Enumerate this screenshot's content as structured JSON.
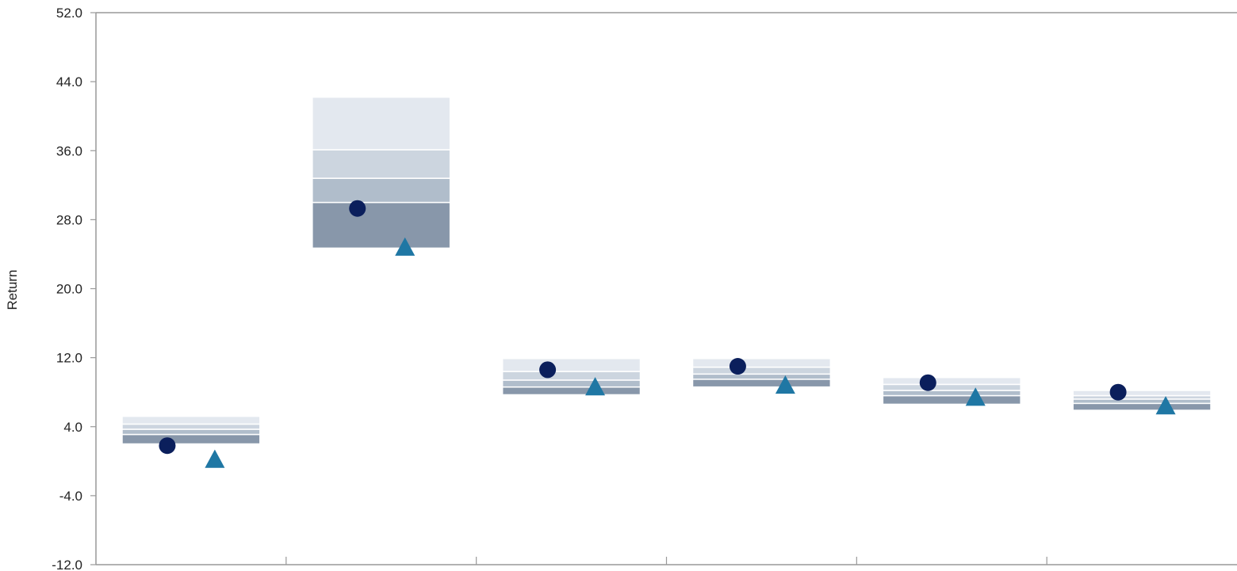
{
  "chart_data": {
    "type": "floating-bar-percentile",
    "ylabel": "Return",
    "ylim": [
      -12.0,
      52.0
    ],
    "yticks": [
      "52.0",
      "44.0",
      "36.0",
      "28.0",
      "20.0",
      "12.0",
      "4.0",
      "-4.0",
      "-12.0"
    ],
    "ytick_values": [
      52,
      44,
      36,
      28,
      20,
      12,
      4,
      -4,
      -12
    ],
    "grid": false,
    "groups": [
      {
        "bands": [
          [
            3.1,
            2.0
          ],
          [
            3.7,
            3.1
          ],
          [
            4.3,
            3.7
          ],
          [
            5.2,
            4.3
          ]
        ],
        "markers": {
          "circle": 1.8,
          "triangle": 0.2
        }
      },
      {
        "bands": [
          [
            30.0,
            24.7
          ],
          [
            32.8,
            30.0
          ],
          [
            36.1,
            32.8
          ],
          [
            42.2,
            36.1
          ]
        ],
        "markers": {
          "circle": 29.3,
          "triangle": 24.8
        }
      },
      {
        "bands": [
          [
            8.6,
            7.7
          ],
          [
            9.4,
            8.6
          ],
          [
            10.4,
            9.4
          ],
          [
            11.9,
            10.4
          ]
        ],
        "markers": {
          "circle": 10.6,
          "triangle": 8.6
        }
      },
      {
        "bands": [
          [
            9.5,
            8.6
          ],
          [
            10.1,
            9.5
          ],
          [
            10.9,
            10.1
          ],
          [
            11.9,
            10.9
          ]
        ],
        "markers": {
          "circle": 11.0,
          "triangle": 8.8
        }
      },
      {
        "bands": [
          [
            7.6,
            6.6
          ],
          [
            8.2,
            7.6
          ],
          [
            8.9,
            8.2
          ],
          [
            9.7,
            8.9
          ]
        ],
        "markers": {
          "circle": 9.1,
          "triangle": 7.4
        }
      },
      {
        "bands": [
          [
            6.7,
            5.9
          ],
          [
            7.2,
            6.7
          ],
          [
            7.6,
            7.2
          ],
          [
            8.2,
            7.6
          ]
        ],
        "markers": {
          "circle": 8.0,
          "triangle": 6.4
        }
      }
    ]
  },
  "colors": {
    "band_0": "#8897aa",
    "band_1": "#b0bdcb",
    "band_2": "#ccd5df",
    "band_3": "#e3e8ef",
    "circle": "#0b1f5c",
    "triangle": "#1f77a4",
    "axis": "#999999"
  }
}
